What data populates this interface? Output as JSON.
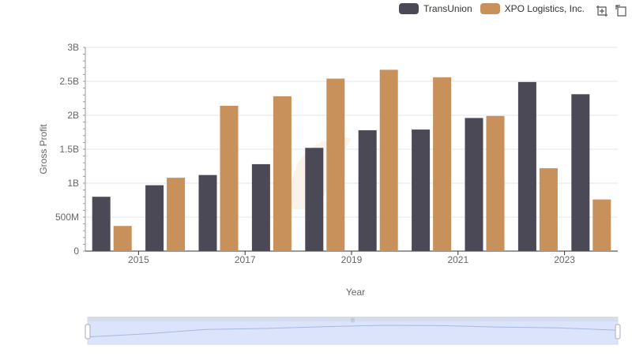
{
  "chart_data": {
    "type": "bar",
    "x": [
      2014,
      2015,
      2016,
      2017,
      2018,
      2019,
      2020,
      2021,
      2022,
      2023
    ],
    "x_tick_labels": [
      "2015",
      "2017",
      "2019",
      "2021",
      "2023"
    ],
    "xlabel": "Year",
    "ylabel": "Gross Profit",
    "ylim": [
      0,
      3000000000
    ],
    "y_tick_labels": [
      "0",
      "500M",
      "1B",
      "1.5B",
      "2B",
      "2.5B",
      "3B"
    ],
    "grid": true,
    "legend_position": "top-right",
    "series": [
      {
        "name": "TransUnion",
        "color": "#4a4955",
        "values": [
          800000000,
          970000000,
          1120000000,
          1280000000,
          1520000000,
          1780000000,
          1790000000,
          1960000000,
          2490000000,
          2310000000
        ]
      },
      {
        "name": "XPO Logistics, Inc.",
        "color": "#c8915b",
        "values": [
          370000000,
          1080000000,
          2140000000,
          2280000000,
          2540000000,
          2670000000,
          2560000000,
          1990000000,
          1220000000,
          760000000
        ]
      }
    ]
  },
  "toolbox": {
    "zoom_icon": "zoom-icon",
    "restore_icon": "restore-icon"
  },
  "colors": {
    "grid": "#e0e6f1",
    "axis": "#333333",
    "slider_fill": "#dbe4fb",
    "slider_border": "#d2dbee"
  }
}
